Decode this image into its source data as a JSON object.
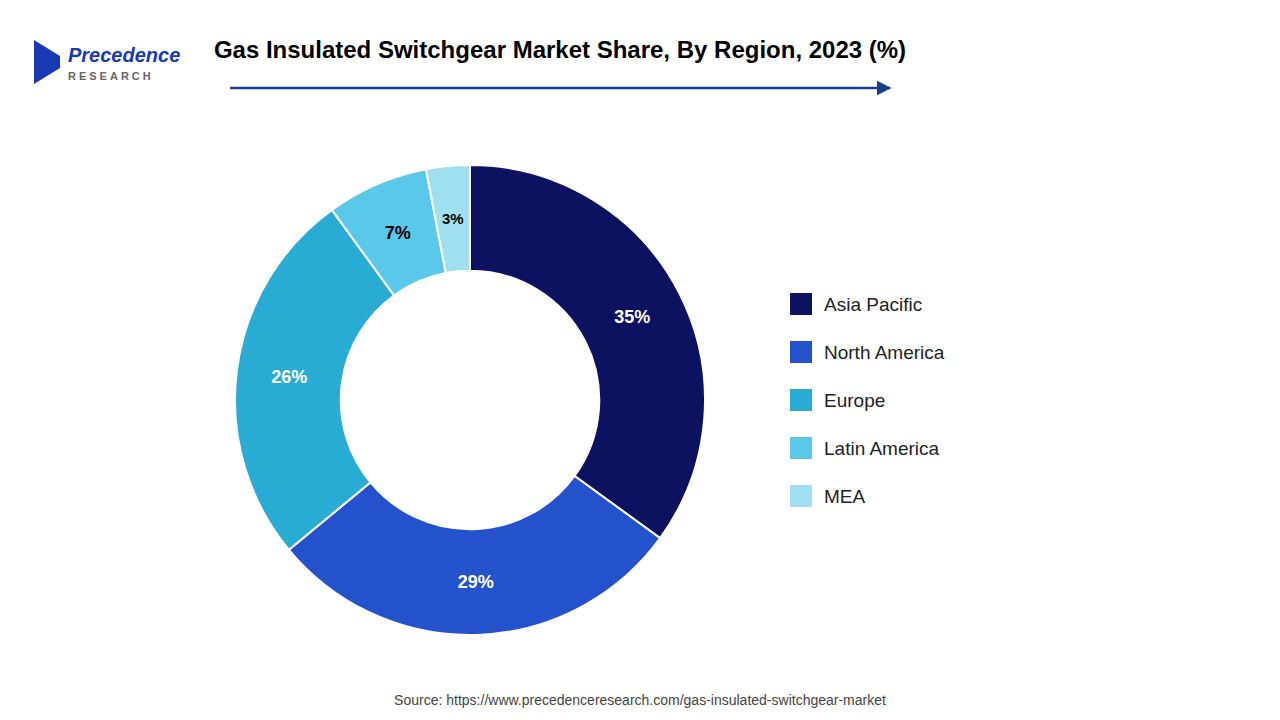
{
  "chart_data": {
    "type": "pie",
    "title": "Gas Insulated Switchgear Market Share, By Region, 2023 (%)",
    "categories": [
      "Asia Pacific",
      "North America",
      "Europe",
      "Latin America",
      "MEA"
    ],
    "values": [
      35,
      29,
      26,
      7,
      3
    ],
    "value_labels": [
      "35%",
      "29%",
      "26%",
      "7%",
      "3%"
    ],
    "colors": [
      "#0d1260",
      "#2452cc",
      "#29acd4",
      "#5ac8e8",
      "#a0dff0"
    ],
    "data_labels": true,
    "legend": "right",
    "annotations": [
      "Precedence",
      "RESEARCH",
      "Source: https://www.precedenceresearch.com/gas-insulated-switchgear-market"
    ]
  }
}
